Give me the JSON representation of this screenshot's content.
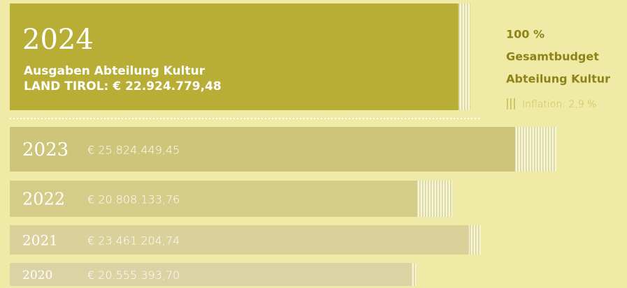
{
  "chart_data": {
    "type": "bar",
    "orientation": "horizontal",
    "categories": [
      "2024",
      "2023",
      "2022",
      "2021",
      "2020"
    ],
    "values": [
      22924779.48,
      25824449.45,
      20808133.76,
      23461204.74,
      20555393.7
    ],
    "value_labels": [
      "€ 22.924.779,48",
      "€ 25.824.449,45",
      "€ 20.808.133,76",
      "€ 23.461.204,74",
      "€ 20.555.393,70"
    ],
    "colors": [
      "#b8ad35",
      "#cfc57a",
      "#d5cc8a",
      "#d9d09a",
      "#dbd3a3"
    ],
    "subtitle": "Ausgaben Abteilung Kultur",
    "total_prefix": "LAND TIROL:",
    "inflation": {
      "name": "Inflation: 2,9 %",
      "values": [
        600000,
        2100000,
        1800000,
        600000,
        200000
      ],
      "color": "#c9bd55"
    },
    "side_labels": [
      "100 %",
      "Gesamtbudget",
      "Abteilung Kultur"
    ],
    "xlim": [
      0,
      31000000
    ]
  }
}
